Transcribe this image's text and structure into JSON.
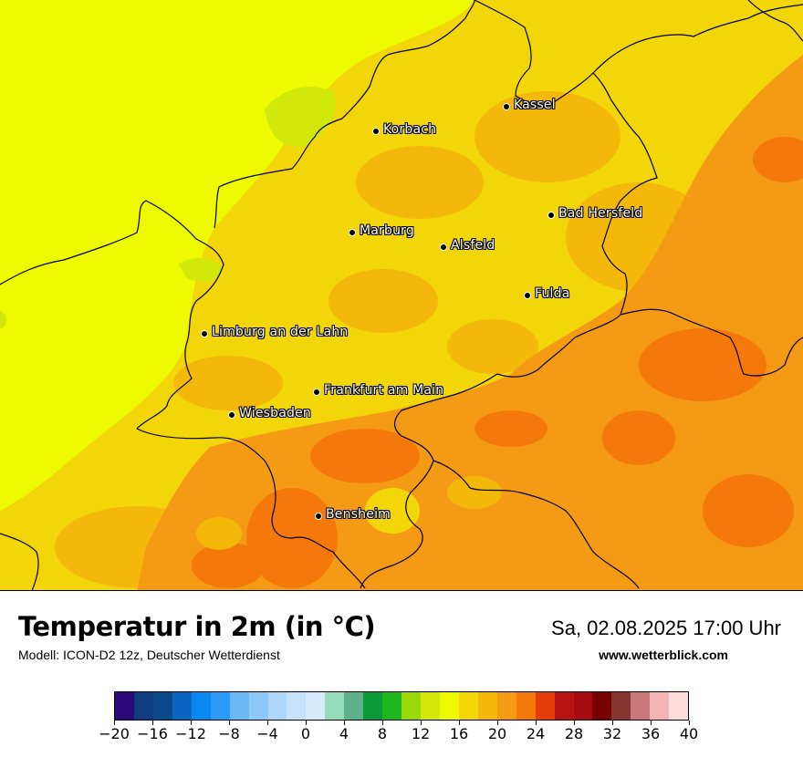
{
  "title": "Temperatur in 2m (in °C)",
  "model": "Modell: ICON-D2 12z, Deutscher Wetterdienst",
  "datetime": "Sa, 02.08.2025 17:00 Uhr",
  "site": "www.wetterblick.com",
  "colors": {
    "bins": [
      "#2a0a78",
      "#123c82",
      "#0a4a8a",
      "#0a66c0",
      "#0a88f2",
      "#2a9cf7",
      "#6bb8f7",
      "#8dc8f9",
      "#acd6fa",
      "#c6e2fb",
      "#d8ebfc",
      "#94dbbc",
      "#61b08c",
      "#0a9a3a",
      "#1eb81e",
      "#9ad80a",
      "#d2e80a",
      "#eefa00",
      "#f2d60a",
      "#f4b80a",
      "#f49a14",
      "#f4780a",
      "#e63c0a",
      "#b81416",
      "#a80a12",
      "#780000",
      "#883430",
      "#c87878",
      "#f4b4b4",
      "#fcdcdc"
    ],
    "border": "#000000"
  },
  "colorbar": {
    "tick_labels": [
      "−20",
      "−16",
      "−12",
      "−8",
      "−4",
      "0",
      "4",
      "8",
      "12",
      "16",
      "20",
      "24",
      "28",
      "32",
      "36",
      "40"
    ],
    "min": -20,
    "max": 40
  },
  "cities": [
    {
      "name": "Kassel",
      "id": "kassel"
    },
    {
      "name": "Korbach",
      "id": "korbach"
    },
    {
      "name": "Bad Hersfeld",
      "id": "bad-hersfeld"
    },
    {
      "name": "Marburg",
      "id": "marburg"
    },
    {
      "name": "Alsfeld",
      "id": "alsfeld"
    },
    {
      "name": "Fulda",
      "id": "fulda"
    },
    {
      "name": "Limburg an der Lahn",
      "id": "limburg"
    },
    {
      "name": "Frankfurt am Main",
      "id": "frankfurt"
    },
    {
      "name": "Wiesbaden",
      "id": "wiesbaden"
    },
    {
      "name": "Bensheim",
      "id": "bensheim"
    }
  ]
}
